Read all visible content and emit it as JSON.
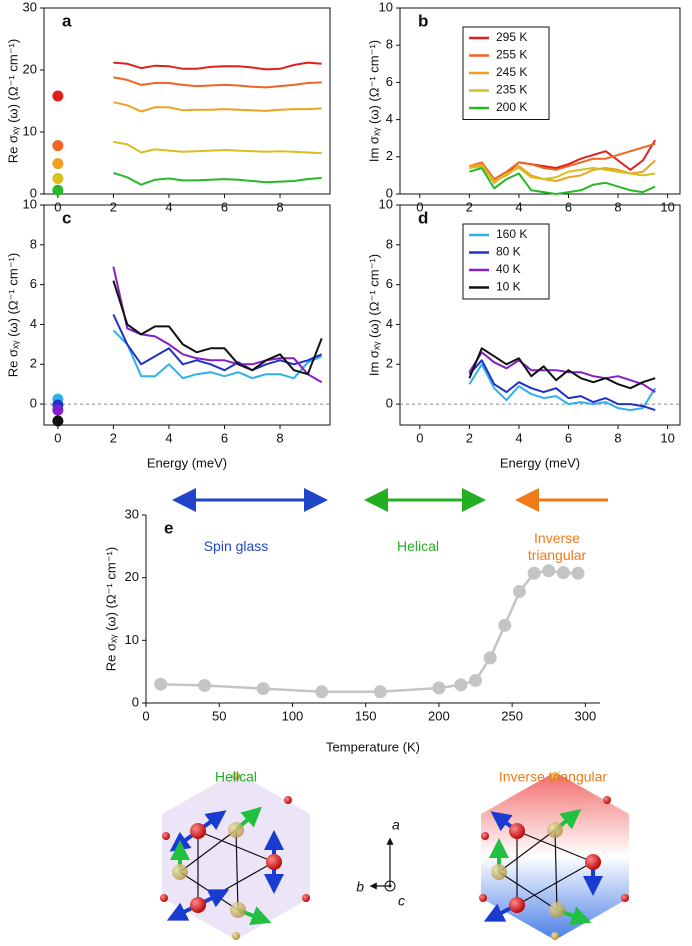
{
  "chart_data": [
    {
      "type": "line",
      "panel": "a",
      "y_label": "Re σₓᵧ (ω) (Ω⁻¹ cm⁻¹)",
      "xlim": [
        -0.5,
        9.8
      ],
      "xticks": [
        0,
        2,
        4,
        6,
        8
      ],
      "ylim": [
        0,
        30
      ],
      "yticks": [
        0,
        10,
        20,
        30
      ],
      "dc_x": 0,
      "x": [
        2,
        2.5,
        3,
        3.5,
        4,
        4.5,
        5,
        5.5,
        6,
        6.5,
        7,
        7.5,
        8,
        8.5,
        9,
        9.5
      ],
      "series": [
        {
          "name": "295 K",
          "color": "#e0201b",
          "dc_value": 15.8,
          "values": [
            21.2,
            21.0,
            20.3,
            20.7,
            20.6,
            20.2,
            20.2,
            20.5,
            20.6,
            20.6,
            20.4,
            20.1,
            20.2,
            20.8,
            21.2,
            21.0
          ]
        },
        {
          "name": "255 K",
          "color": "#f06424",
          "dc_value": 7.8,
          "values": [
            18.8,
            18.4,
            17.6,
            17.9,
            17.9,
            17.6,
            17.4,
            17.5,
            17.6,
            17.5,
            17.3,
            17.2,
            17.4,
            17.6,
            17.9,
            18.0
          ]
        },
        {
          "name": "245 K",
          "color": "#f0a020",
          "dc_value": 4.9,
          "values": [
            14.8,
            14.3,
            13.3,
            14.0,
            14.0,
            13.5,
            13.6,
            13.6,
            13.7,
            13.6,
            13.5,
            13.4,
            13.6,
            13.7,
            13.7,
            13.8
          ]
        },
        {
          "name": "235 K",
          "color": "#d4c020",
          "dc_value": 2.5,
          "values": [
            8.4,
            8.0,
            6.7,
            7.2,
            7.0,
            6.8,
            6.9,
            7.0,
            7.1,
            7.0,
            6.9,
            6.8,
            6.9,
            6.8,
            6.7,
            6.6
          ]
        },
        {
          "name": "200 K",
          "color": "#28b828",
          "dc_value": 0.6,
          "values": [
            3.4,
            2.7,
            1.5,
            2.3,
            2.5,
            2.2,
            2.2,
            2.3,
            2.4,
            2.3,
            2.1,
            1.9,
            2.0,
            2.1,
            2.4,
            2.6
          ]
        }
      ]
    },
    {
      "type": "line",
      "panel": "b",
      "y_label": "Im σₓᵧ (ω) (Ω⁻¹ cm⁻¹)",
      "legend": true,
      "xlim": [
        -0.8,
        10.5
      ],
      "xticks": [
        0,
        2,
        4,
        6,
        8,
        10
      ],
      "ylim": [
        0,
        10
      ],
      "yticks": [
        0,
        2,
        4,
        6,
        8,
        10
      ],
      "x": [
        2,
        2.5,
        3,
        3.5,
        4,
        4.5,
        5,
        5.5,
        6,
        6.5,
        7,
        7.5,
        8,
        8.5,
        9,
        9.5
      ],
      "series": [
        {
          "name": "295 K",
          "color": "#e0201b",
          "values": [
            1.4,
            1.6,
            0.6,
            1.1,
            1.7,
            1.6,
            1.5,
            1.4,
            1.6,
            1.9,
            2.1,
            2.3,
            1.8,
            1.3,
            1.8,
            2.9
          ]
        },
        {
          "name": "255 K",
          "color": "#f06424",
          "values": [
            1.5,
            1.7,
            0.8,
            1.2,
            1.7,
            1.6,
            1.4,
            1.3,
            1.5,
            1.7,
            1.9,
            1.9,
            2.1,
            2.3,
            2.5,
            2.7
          ]
        },
        {
          "name": "245 K",
          "color": "#f0a020",
          "values": [
            1.5,
            1.6,
            0.7,
            1.0,
            1.5,
            1.0,
            0.8,
            0.7,
            0.9,
            1.0,
            1.3,
            1.4,
            1.3,
            1.1,
            1.2,
            1.8
          ]
        },
        {
          "name": "235 K",
          "color": "#d4c020",
          "values": [
            1.4,
            1.5,
            0.6,
            1.1,
            1.4,
            0.9,
            0.8,
            0.9,
            1.2,
            1.3,
            1.4,
            1.3,
            1.2,
            1.1,
            1.0,
            1.1
          ]
        },
        {
          "name": "200 K",
          "color": "#28b828",
          "values": [
            1.2,
            1.4,
            0.3,
            0.8,
            1.1,
            0.2,
            0.1,
            0.0,
            0.1,
            0.2,
            0.5,
            0.6,
            0.4,
            0.2,
            0.1,
            0.4
          ]
        }
      ]
    },
    {
      "type": "line",
      "panel": "c",
      "y_label": "Re σₓᵧ (ω) (Ω⁻¹ cm⁻¹)",
      "x_label": "Energy (meV)",
      "zero_line": true,
      "xlim": [
        -0.5,
        9.8
      ],
      "xticks": [
        0,
        2,
        4,
        6,
        8
      ],
      "ylim": [
        -1.05,
        10
      ],
      "yticks": [
        0,
        2,
        4,
        6,
        8,
        10
      ],
      "dc_x": 0,
      "x": [
        2,
        2.5,
        3,
        3.5,
        4,
        4.5,
        5,
        5.5,
        6,
        6.5,
        7,
        7.5,
        8,
        8.5,
        9,
        9.5
      ],
      "series": [
        {
          "name": "160 K",
          "color": "#30b0e8",
          "dc_value": 0.25,
          "values": [
            3.7,
            3.0,
            1.4,
            1.4,
            2.0,
            1.3,
            1.5,
            1.6,
            1.4,
            1.6,
            1.3,
            1.5,
            1.5,
            1.3,
            2.1,
            2.4
          ]
        },
        {
          "name": "80 K",
          "color": "#2030c8",
          "dc_value": -0.05,
          "values": [
            4.5,
            3.0,
            2.0,
            2.4,
            2.8,
            2.0,
            2.2,
            2.0,
            1.7,
            2.1,
            1.7,
            2.0,
            2.2,
            2.0,
            2.2,
            2.5
          ]
        },
        {
          "name": "40 K",
          "color": "#8020c8",
          "dc_value": -0.3,
          "values": [
            6.9,
            3.8,
            3.5,
            3.4,
            3.0,
            2.5,
            2.3,
            2.2,
            2.2,
            2.0,
            2.0,
            2.2,
            2.3,
            2.3,
            1.5,
            1.1
          ]
        },
        {
          "name": "10 K",
          "color": "#111111",
          "dc_value": -0.85,
          "values": [
            6.2,
            4.0,
            3.5,
            3.9,
            3.9,
            3.0,
            2.6,
            2.8,
            2.8,
            2.0,
            1.7,
            2.2,
            2.5,
            1.7,
            1.5,
            3.3
          ]
        }
      ]
    },
    {
      "type": "line",
      "panel": "d",
      "y_label": "Im σₓᵧ (ω) (Ω⁻¹ cm⁻¹)",
      "x_label": "Energy (meV)",
      "zero_line": true,
      "legend": true,
      "xlim": [
        -0.8,
        10.5
      ],
      "xticks": [
        0,
        2,
        4,
        6,
        8,
        10
      ],
      "ylim": [
        -1.05,
        10
      ],
      "yticks": [
        0,
        2,
        4,
        6,
        8,
        10
      ],
      "x": [
        2,
        2.5,
        3,
        3.5,
        4,
        4.5,
        5,
        5.5,
        6,
        6.5,
        7,
        7.5,
        8,
        8.5,
        9,
        9.5
      ],
      "series": [
        {
          "name": "160 K",
          "color": "#30b0e8",
          "values": [
            1.0,
            2.0,
            0.8,
            0.2,
            0.9,
            0.5,
            0.3,
            0.4,
            0.0,
            0.1,
            0.0,
            0.1,
            -0.2,
            -0.3,
            -0.2,
            0.8
          ]
        },
        {
          "name": "80 K",
          "color": "#2030c8",
          "values": [
            1.5,
            2.2,
            1.0,
            0.6,
            1.1,
            0.8,
            0.6,
            0.8,
            0.3,
            0.4,
            0.1,
            0.3,
            0.0,
            0.0,
            -0.1,
            -0.3
          ]
        },
        {
          "name": "40 K",
          "color": "#8020c8",
          "values": [
            1.6,
            2.6,
            2.1,
            1.8,
            2.2,
            1.7,
            1.7,
            1.7,
            1.6,
            1.6,
            1.4,
            1.3,
            1.4,
            1.2,
            1.0,
            0.6
          ]
        },
        {
          "name": "10 K",
          "color": "#111111",
          "values": [
            1.3,
            2.8,
            2.4,
            2.0,
            2.3,
            1.4,
            1.9,
            1.2,
            1.7,
            1.3,
            1.1,
            1.3,
            1.0,
            0.8,
            1.1,
            1.3
          ]
        }
      ]
    },
    {
      "type": "marker_line",
      "panel": "e",
      "y_label": "Re σₓᵧ (ω) (Ω⁻¹ cm⁻¹)",
      "x_label": "Temperature (K)",
      "color": "#c4c4c4",
      "xlim": [
        0,
        310
      ],
      "xticks": [
        0,
        50,
        100,
        150,
        200,
        250,
        300
      ],
      "ylim": [
        0,
        30
      ],
      "yticks": [
        0,
        10,
        20,
        30
      ],
      "x": [
        10,
        40,
        80,
        120,
        160,
        200,
        215,
        225,
        235,
        245,
        255,
        265,
        275,
        285,
        295
      ],
      "values": [
        3.0,
        2.8,
        2.3,
        1.8,
        1.8,
        2.4,
        2.9,
        3.6,
        7.2,
        12.4,
        17.8,
        20.7,
        21.1,
        20.8,
        20.7
      ],
      "annotations": [
        {
          "text": "Spin glass",
          "color": "#1f45c8"
        },
        {
          "text": "Helical",
          "color": "#22b022"
        },
        {
          "text": "Inverse triangular",
          "color": "#f07a18"
        }
      ]
    }
  ],
  "diagram": {
    "left_title": "Helical",
    "right_title": "Inverse triangular",
    "axis_a": "a",
    "axis_b": "b",
    "axis_c": "c"
  }
}
